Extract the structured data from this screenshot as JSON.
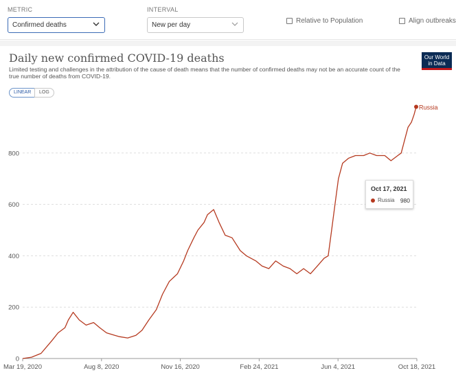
{
  "controls": {
    "metric_label": "METRIC",
    "metric_value": "Confirmed deaths",
    "interval_label": "INTERVAL",
    "interval_value": "New per day",
    "relative_label": "Relative to Population",
    "align_label": "Align outbreaks"
  },
  "header": {
    "title": "Daily new confirmed COVID-19 deaths",
    "subtitle": "Limited testing and challenges in the attribution of the cause of death means that the number of confirmed deaths may not be an accurate count of the true number of deaths from COVID-19.",
    "logo": "Our World in Data"
  },
  "scale_toggle": {
    "linear": "LINEAR",
    "log": "LOG",
    "active": "linear"
  },
  "colors": {
    "series": "#b5391f",
    "accent": "#3a6ab5",
    "logo_bg": "#0b2b54",
    "logo_bar": "#c2181b"
  },
  "tooltip": {
    "date": "Oct 17, 2021",
    "series": "Russia",
    "value": "980"
  },
  "chart_data": {
    "type": "line",
    "title": "Daily new confirmed COVID-19 deaths",
    "xlabel": "",
    "ylabel": "",
    "x_ticks": [
      "Mar 19, 2020",
      "Aug 8, 2020",
      "Nov 16, 2020",
      "Feb 24, 2021",
      "Jun 4, 2021",
      "Oct 18, 2021"
    ],
    "y_ticks": [
      "0",
      "200",
      "400",
      "600",
      "800"
    ],
    "ylim": [
      0,
      1000
    ],
    "xlim": [
      "2020-03-19",
      "2021-10-18"
    ],
    "grid": "horizontal-dashed",
    "series": [
      {
        "name": "Russia",
        "end_label": "Russia",
        "x": [
          "2020-03-19",
          "2020-04-01",
          "2020-04-15",
          "2020-05-01",
          "2020-05-10",
          "2020-05-20",
          "2020-05-25",
          "2020-06-01",
          "2020-06-10",
          "2020-06-20",
          "2020-07-01",
          "2020-07-10",
          "2020-07-20",
          "2020-08-01",
          "2020-08-08",
          "2020-08-20",
          "2020-09-01",
          "2020-09-10",
          "2020-09-20",
          "2020-10-01",
          "2020-10-10",
          "2020-10-20",
          "2020-11-01",
          "2020-11-10",
          "2020-11-16",
          "2020-11-25",
          "2020-12-01",
          "2020-12-10",
          "2020-12-15",
          "2020-12-24",
          "2021-01-01",
          "2021-01-10",
          "2021-01-20",
          "2021-02-01",
          "2021-02-10",
          "2021-02-24",
          "2021-03-05",
          "2021-03-15",
          "2021-03-25",
          "2021-04-05",
          "2021-04-15",
          "2021-04-25",
          "2021-05-05",
          "2021-05-15",
          "2021-05-25",
          "2021-06-04",
          "2021-06-10",
          "2021-06-15",
          "2021-06-20",
          "2021-06-25",
          "2021-07-01",
          "2021-07-10",
          "2021-07-20",
          "2021-08-01",
          "2021-08-10",
          "2021-08-20",
          "2021-09-01",
          "2021-09-10",
          "2021-09-20",
          "2021-09-25",
          "2021-10-01",
          "2021-10-05",
          "2021-10-10",
          "2021-10-14",
          "2021-10-17"
        ],
        "y": [
          0,
          5,
          20,
          70,
          100,
          120,
          150,
          180,
          150,
          130,
          140,
          120,
          100,
          90,
          85,
          80,
          90,
          110,
          150,
          190,
          250,
          300,
          330,
          380,
          420,
          470,
          500,
          530,
          560,
          580,
          530,
          480,
          470,
          420,
          400,
          380,
          360,
          350,
          380,
          360,
          350,
          330,
          350,
          330,
          360,
          390,
          400,
          500,
          600,
          700,
          760,
          780,
          790,
          790,
          800,
          790,
          790,
          770,
          790,
          800,
          860,
          900,
          920,
          950,
          980
        ]
      }
    ]
  }
}
